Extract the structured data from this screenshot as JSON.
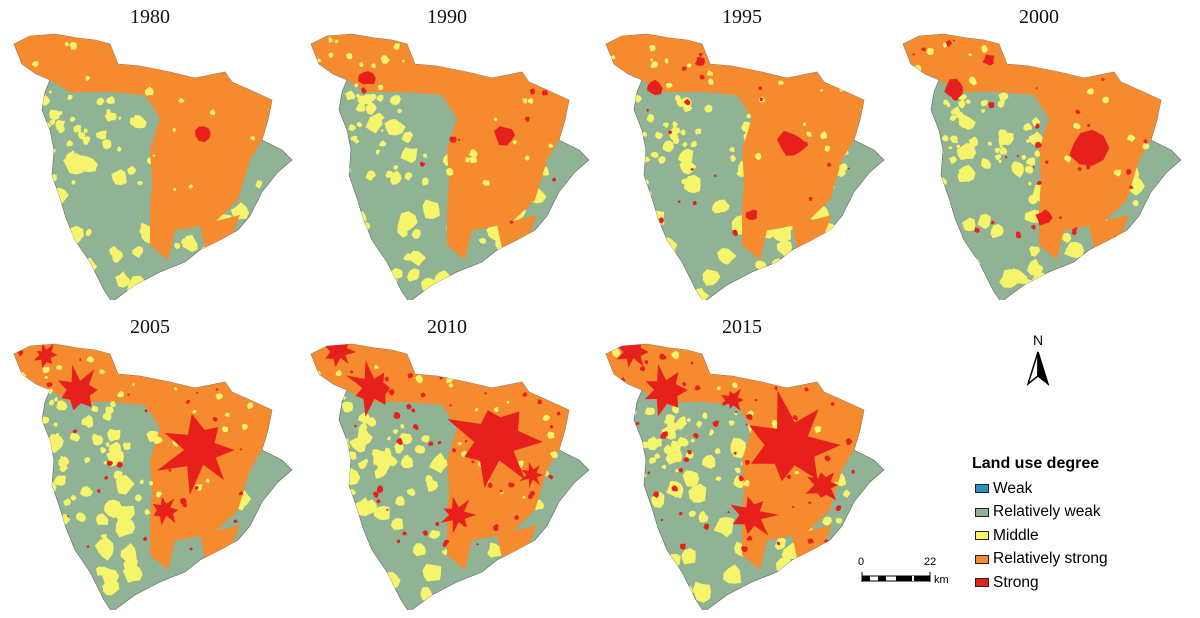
{
  "panels": [
    {
      "year": "1980",
      "red": [
        [
          203,
          133,
          8,
          "a"
        ]
      ],
      "strongExtent": 0
    },
    {
      "year": "1990",
      "red": [
        [
          70,
          78,
          8,
          "a"
        ],
        [
          208,
          135,
          10,
          "a"
        ]
      ],
      "strongExtent": 1
    },
    {
      "year": "1995",
      "red": [
        [
          62,
          88,
          8,
          "a"
        ],
        [
          200,
          145,
          14,
          "a"
        ],
        [
          160,
          215,
          6,
          "a"
        ],
        [
          108,
          62,
          5,
          "a"
        ]
      ],
      "strongExtent": 2
    },
    {
      "year": "2000",
      "red": [
        [
          66,
          88,
          10,
          "a"
        ],
        [
          200,
          148,
          18,
          "a"
        ],
        [
          155,
          218,
          8,
          "a"
        ],
        [
          100,
          60,
          6,
          "a"
        ]
      ],
      "strongExtent": 3
    },
    {
      "year": "2005",
      "red": [
        [
          78,
          80,
          18,
          "b"
        ],
        [
          200,
          140,
          32,
          "b"
        ],
        [
          165,
          200,
          12,
          "b"
        ],
        [
          45,
          45,
          10,
          "b"
        ]
      ],
      "strongExtent": 4
    },
    {
      "year": "2010",
      "red": [
        [
          75,
          78,
          20,
          "b"
        ],
        [
          198,
          132,
          36,
          "b"
        ],
        [
          160,
          205,
          14,
          "b"
        ],
        [
          42,
          42,
          12,
          "b"
        ],
        [
          235,
          165,
          10,
          "b"
        ]
      ],
      "strongExtent": 5
    },
    {
      "year": "2015",
      "red": [
        [
          72,
          80,
          22,
          "b"
        ],
        [
          198,
          135,
          40,
          "b"
        ],
        [
          160,
          205,
          18,
          "b"
        ],
        [
          40,
          42,
          14,
          "b"
        ],
        [
          232,
          175,
          14,
          "b"
        ],
        [
          140,
          90,
          10,
          "b"
        ]
      ],
      "strongExtent": 6
    }
  ],
  "legend": {
    "title": "Land use degree",
    "items": [
      {
        "label": "Weak",
        "color": "#2b8fc4"
      },
      {
        "label": "Relatively weak",
        "color": "#8fb394"
      },
      {
        "label": "Middle",
        "color": "#f5f46a"
      },
      {
        "label": "Relatively strong",
        "color": "#f58a2e"
      },
      {
        "label": "Strong",
        "color": "#e8201b"
      }
    ]
  },
  "north": {
    "label": "N"
  },
  "scale": {
    "start": "0",
    "end": "22",
    "unit": "km"
  }
}
